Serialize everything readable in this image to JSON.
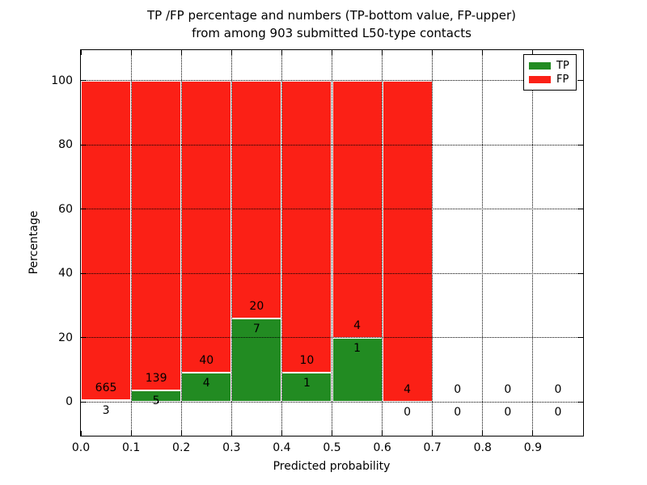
{
  "title": {
    "line1": "TP /FP percentage and numbers (TP-bottom value, FP-upper)",
    "line2": "from among 903 submitted L50-type contacts"
  },
  "axes": {
    "xlabel": "Predicted probability",
    "ylabel": "Percentage",
    "yticks": [
      {
        "value": 0,
        "label": "0"
      },
      {
        "value": 20,
        "label": "20"
      },
      {
        "value": 40,
        "label": "40"
      },
      {
        "value": 60,
        "label": "60"
      },
      {
        "value": 80,
        "label": "80"
      },
      {
        "value": 100,
        "label": "100"
      }
    ],
    "xticks": [
      {
        "value": 0.0,
        "label": "0.0"
      },
      {
        "value": 0.1,
        "label": "0.1"
      },
      {
        "value": 0.2,
        "label": "0.2"
      },
      {
        "value": 0.3,
        "label": "0.3"
      },
      {
        "value": 0.4,
        "label": "0.4"
      },
      {
        "value": 0.5,
        "label": "0.5"
      },
      {
        "value": 0.6,
        "label": "0.6"
      },
      {
        "value": 0.7,
        "label": "0.7"
      },
      {
        "value": 0.8,
        "label": "0.8"
      },
      {
        "value": 0.9,
        "label": "0.9"
      }
    ]
  },
  "colors": {
    "tp": "#228b22",
    "fp": "#fb2016",
    "grid": "#000000",
    "background": "#ffffff"
  },
  "legend": {
    "items": [
      {
        "label": "TP",
        "color_key": "tp"
      },
      {
        "label": "FP",
        "color_key": "fp"
      }
    ]
  },
  "chart_data": {
    "type": "bar",
    "stacked": true,
    "note": "Each 0.1-wide bin is normalized to 100%. Green (TP) bottom segment, red (FP) upper segment. Numeric labels show raw counts: FP count above the TP/FP boundary, TP count below it.",
    "total_submitted": 903,
    "xlim": [
      0,
      1
    ],
    "ylim": [
      -10.5,
      109.5
    ],
    "grid": "dotted",
    "legend_position": "upper right",
    "bins": [
      {
        "range": [
          0.0,
          0.1
        ],
        "tp": 3,
        "fp": 665,
        "tp_pct": 0.45,
        "fp_pct": 99.55
      },
      {
        "range": [
          0.1,
          0.2
        ],
        "tp": 5,
        "fp": 139,
        "tp_pct": 3.47,
        "fp_pct": 96.53
      },
      {
        "range": [
          0.2,
          0.3
        ],
        "tp": 4,
        "fp": 40,
        "tp_pct": 9.09,
        "fp_pct": 90.91
      },
      {
        "range": [
          0.3,
          0.4
        ],
        "tp": 7,
        "fp": 20,
        "tp_pct": 25.93,
        "fp_pct": 74.07
      },
      {
        "range": [
          0.4,
          0.5
        ],
        "tp": 1,
        "fp": 10,
        "tp_pct": 9.09,
        "fp_pct": 90.91
      },
      {
        "range": [
          0.5,
          0.6
        ],
        "tp": 1,
        "fp": 4,
        "tp_pct": 20.0,
        "fp_pct": 80.0
      },
      {
        "range": [
          0.6,
          0.7
        ],
        "tp": 0,
        "fp": 4,
        "tp_pct": 0.0,
        "fp_pct": 100.0
      },
      {
        "range": [
          0.7,
          0.8
        ],
        "tp": 0,
        "fp": 0,
        "tp_pct": 0.0,
        "fp_pct": 0.0
      },
      {
        "range": [
          0.8,
          0.9
        ],
        "tp": 0,
        "fp": 0,
        "tp_pct": 0.0,
        "fp_pct": 0.0
      },
      {
        "range": [
          0.9,
          1.0
        ],
        "tp": 0,
        "fp": 0,
        "tp_pct": 0.0,
        "fp_pct": 0.0
      }
    ]
  }
}
